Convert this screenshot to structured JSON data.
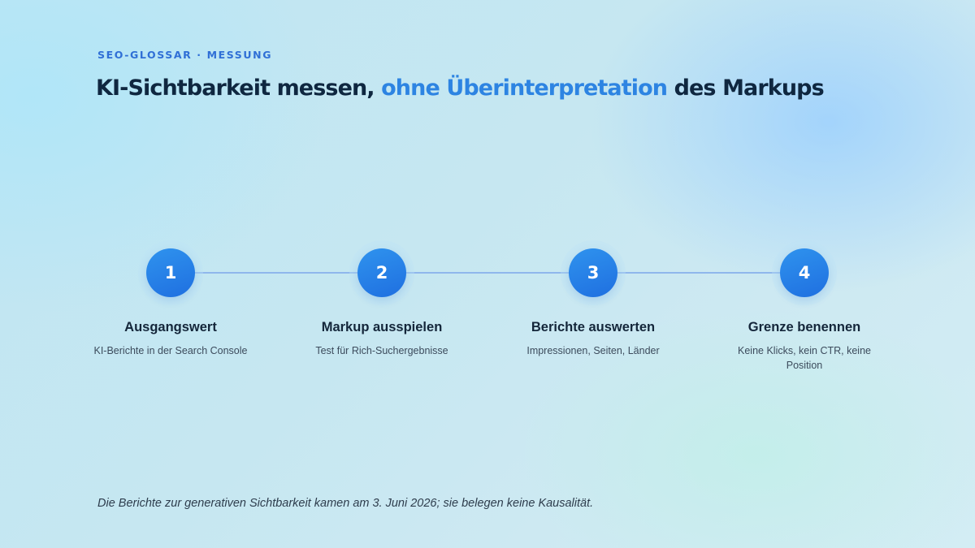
{
  "kicker": "SEO-GLOSSAR · MESSUNG",
  "title": {
    "part1": "KI-Sichtbarkeit messen, ",
    "accent": "ohne Überinterpretation",
    "part2": " des Markups"
  },
  "colors": {
    "accent": "#2d84e2",
    "kicker": "#2f6fd6",
    "circle": "#1f6fe0",
    "line": "#8fb7ec",
    "text_dark": "#0f2740"
  },
  "steps": [
    {
      "number": "1",
      "title": "Ausgangswert",
      "description": "KI-Berichte in der Search Console"
    },
    {
      "number": "2",
      "title": "Markup ausspielen",
      "description": "Test für Rich-Suchergebnisse"
    },
    {
      "number": "3",
      "title": "Berichte auswerten",
      "description": "Impressionen, Seiten, Länder"
    },
    {
      "number": "4",
      "title": "Grenze benennen",
      "description": "Keine Klicks, kein CTR, keine Position"
    }
  ],
  "footnote": "Die Berichte zur generativen Sichtbarkeit kamen am 3. Juni 2026; sie belegen keine Kausalität."
}
